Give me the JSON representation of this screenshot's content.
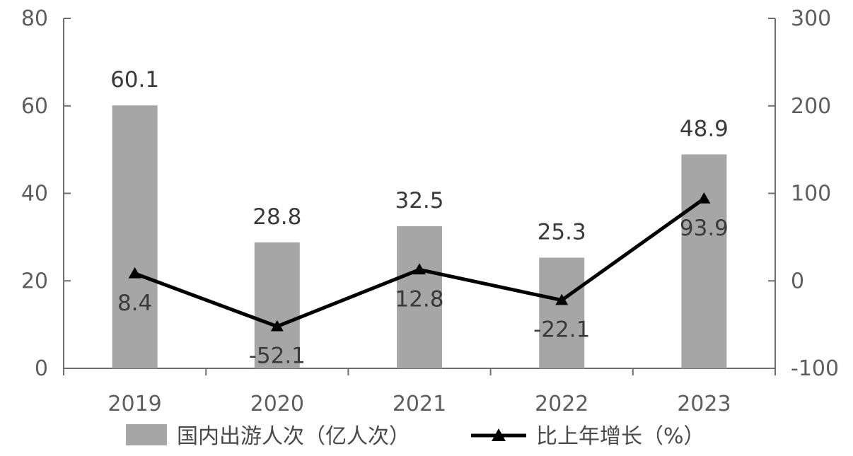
{
  "chart_data": {
    "type": "bar",
    "categories": [
      "2019",
      "2020",
      "2021",
      "2022",
      "2023"
    ],
    "series": [
      {
        "name": "国内出游人次（亿人次）",
        "type": "bar",
        "axis": "left",
        "values": [
          60.1,
          28.8,
          32.5,
          25.3,
          48.9
        ],
        "labels": [
          "60.1",
          "28.8",
          "32.5",
          "25.3",
          "48.9"
        ]
      },
      {
        "name": "比上年增长（%）",
        "type": "line",
        "axis": "right",
        "values": [
          8.4,
          -52.1,
          12.8,
          -22.1,
          93.9
        ],
        "labels": [
          "8.4",
          "-52.1",
          "12.8",
          "-22.1",
          "93.9"
        ]
      }
    ],
    "y_left": {
      "min": 0,
      "max": 80,
      "ticks": [
        0,
        20,
        40,
        60,
        80
      ],
      "tick_labels": [
        "0",
        "20",
        "40",
        "60",
        "80"
      ]
    },
    "y_right": {
      "min": -100,
      "max": 300,
      "ticks": [
        -100,
        0,
        100,
        200,
        300
      ],
      "tick_labels": [
        "-100",
        "0",
        "100",
        "200",
        "300"
      ]
    },
    "grid": false,
    "legend_position": "bottom",
    "colors": {
      "bar": "#a6a6a6",
      "line": "#000000",
      "axis": "#6e6e6e"
    }
  }
}
